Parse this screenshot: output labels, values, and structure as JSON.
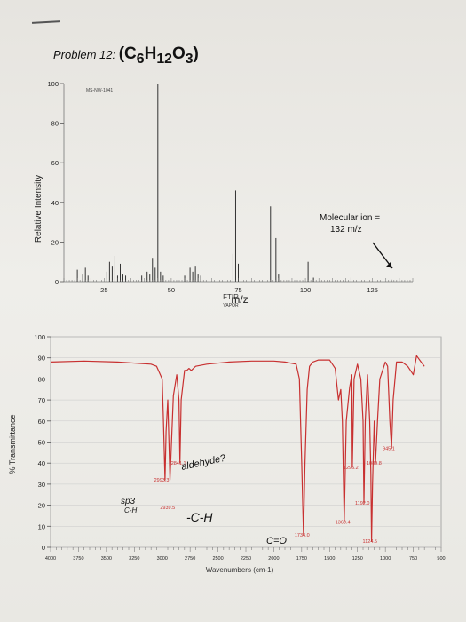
{
  "problem": {
    "label": "Problem 12:",
    "formula": "(C6H12O3)"
  },
  "chart_data": [
    {
      "type": "bar",
      "title": "",
      "watermark": "MS-NW-1041",
      "xlabel": "m/z",
      "ylabel": "Relative Intensity",
      "xlim": [
        10,
        140
      ],
      "ylim": [
        0,
        100
      ],
      "xticks": [
        25,
        50,
        75,
        100,
        125
      ],
      "yticks": [
        0,
        20,
        40,
        60,
        80,
        100
      ],
      "x": [
        15,
        17,
        18,
        19,
        26,
        27,
        28,
        29,
        30,
        31,
        32,
        33,
        39,
        41,
        42,
        43,
        44,
        45,
        46,
        47,
        55,
        57,
        58,
        59,
        60,
        61,
        73,
        74,
        75,
        87,
        89,
        90,
        101,
        103,
        117,
        132
      ],
      "values": [
        6,
        4,
        7,
        3,
        5,
        10,
        8,
        13,
        3,
        9,
        4,
        3,
        3,
        5,
        4,
        12,
        7,
        100,
        5,
        3,
        3,
        7,
        5,
        8,
        4,
        3,
        14,
        46,
        9,
        38,
        22,
        4,
        10,
        2,
        2,
        1
      ],
      "annotation": "Molecular ion =\n132 m/z"
    },
    {
      "type": "line",
      "title": "FTIR",
      "subtitle": "VAPOR",
      "xlabel": "Wavenumbers (cm-1)",
      "ylabel": "% Transmittance",
      "xlim": [
        4000,
        500
      ],
      "ylim": [
        0,
        100
      ],
      "xticks": [
        4000,
        3750,
        3500,
        3250,
        3000,
        2750,
        2500,
        2250,
        2000,
        1750,
        1500,
        1250,
        1000,
        750,
        500
      ],
      "yticks": [
        0,
        10,
        20,
        30,
        40,
        50,
        60,
        70,
        80,
        90,
        100
      ],
      "series": [
        {
          "color": "#c83030",
          "x": [
            4000,
            3700,
            3400,
            3100,
            3050,
            3000,
            2990,
            2975,
            2965,
            2950,
            2930,
            2900,
            2870,
            2850,
            2841,
            2830,
            2800,
            2780,
            2760,
            2740,
            2720,
            2700,
            2600,
            2400,
            2200,
            2000,
            1900,
            1800,
            1770,
            1750,
            1734,
            1720,
            1700,
            1680,
            1650,
            1600,
            1500,
            1450,
            1420,
            1400,
            1385,
            1369,
            1350,
            1320,
            1300,
            1296,
            1280,
            1250,
            1220,
            1200,
            1192,
            1180,
            1160,
            1140,
            1130,
            1124,
            1115,
            1100,
            1089,
            1070,
            1050,
            1000,
            980,
            960,
            945,
            930,
            900,
            850,
            800,
            750,
            720,
            680,
            650
          ],
          "y": [
            88,
            88.5,
            88,
            87,
            86,
            80,
            62,
            32,
            55,
            70,
            32,
            72,
            82,
            70,
            40,
            70,
            84,
            84,
            85,
            84,
            85,
            86,
            87,
            88,
            88.5,
            88.5,
            88,
            87,
            80,
            40,
            6,
            40,
            75,
            86,
            88,
            89,
            89,
            85,
            70,
            75,
            60,
            12,
            60,
            76,
            82,
            38,
            80,
            87,
            80,
            60,
            21,
            60,
            82,
            60,
            35,
            3,
            30,
            60,
            40,
            60,
            80,
            88,
            86,
            60,
            47,
            70,
            88,
            88,
            86,
            82,
            91,
            88,
            86
          ]
        }
      ],
      "peak_labels": [
        {
          "x": 2993,
          "y": 32,
          "text": "2993.3"
        },
        {
          "x": 2841,
          "y": 40,
          "text": "2841.1"
        },
        {
          "x": 2939,
          "y": 19,
          "text": "2939.5"
        },
        {
          "x": 1734,
          "y": 6,
          "text": "1734.0"
        },
        {
          "x": 1369,
          "y": 12,
          "text": "1369.4"
        },
        {
          "x": 1296,
          "y": 38,
          "text": "1296.2"
        },
        {
          "x": 1124,
          "y": 3,
          "text": "1124.5"
        },
        {
          "x": 1192,
          "y": 21,
          "text": "1192.0"
        },
        {
          "x": 1089,
          "y": 40,
          "text": "1089.8"
        },
        {
          "x": 945,
          "y": 47,
          "text": "945.1"
        }
      ],
      "handwriting": {
        "aldehyde": "aldehyde?",
        "sp3_top": "sp3",
        "sp3_bottom": "C-H",
        "ch": "-C-H",
        "co": "C=O"
      }
    }
  ]
}
